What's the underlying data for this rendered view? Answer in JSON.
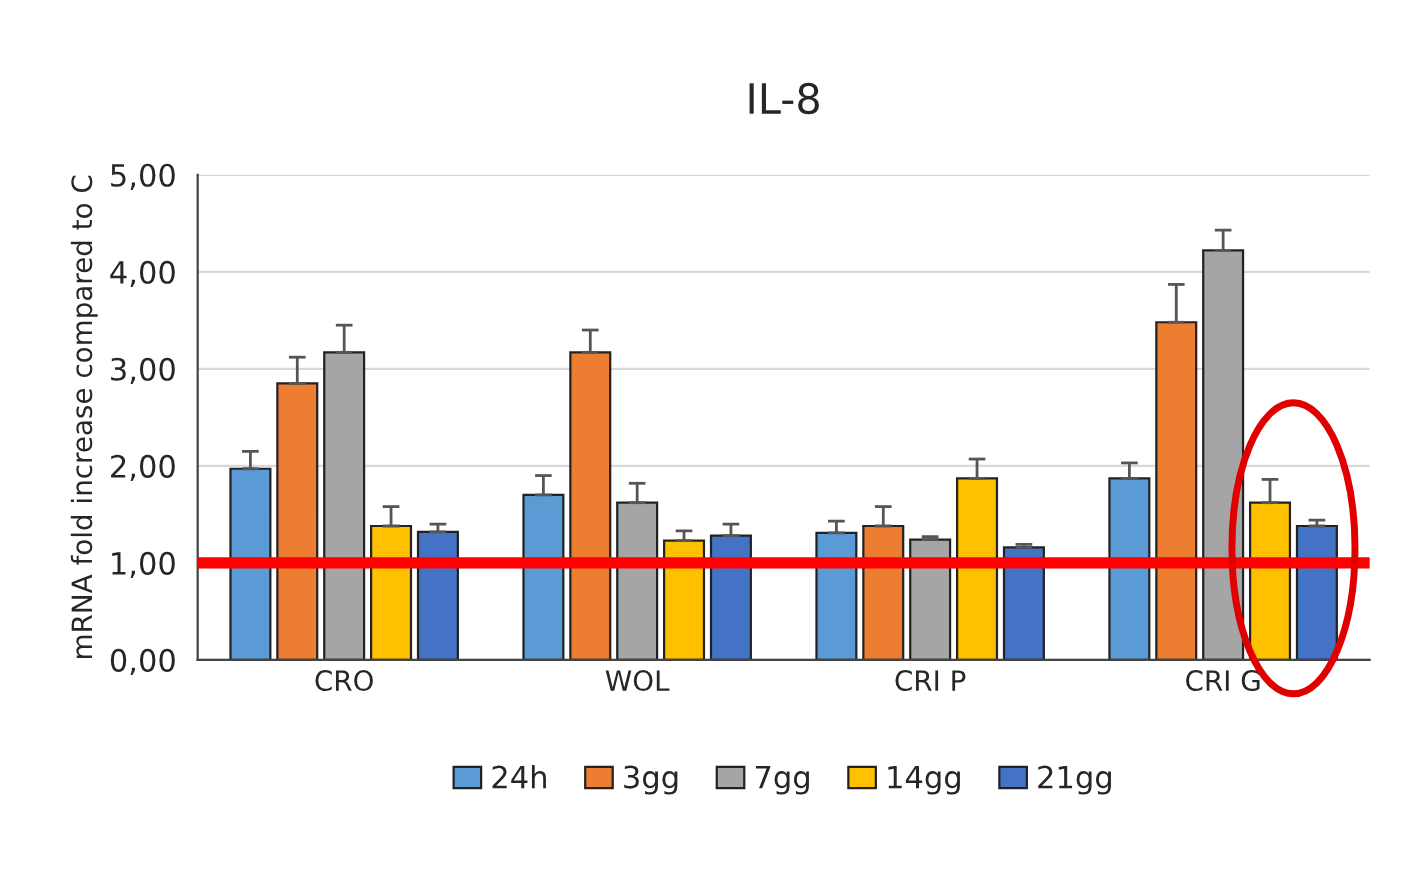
{
  "chart_data": {
    "type": "bar",
    "title": "IL-8",
    "ylabel": "mRNA fold increase compared to C",
    "categories": [
      "CRO",
      "WOL",
      "CRI P",
      "CRI G"
    ],
    "series": [
      {
        "name": "24h",
        "color": "#5b9bd5",
        "values": [
          1.97,
          1.7,
          1.31,
          1.87
        ],
        "errors": [
          [
            1.97,
            2.15
          ],
          [
            1.7,
            1.9
          ],
          [
            1.31,
            1.43
          ],
          [
            1.87,
            2.03
          ]
        ]
      },
      {
        "name": "3gg",
        "color": "#ed7d31",
        "values": [
          2.85,
          3.17,
          1.38,
          3.48
        ],
        "errors": [
          [
            2.85,
            3.12
          ],
          [
            3.17,
            3.4
          ],
          [
            1.38,
            1.58
          ],
          [
            3.48,
            3.87
          ]
        ]
      },
      {
        "name": "7gg",
        "color": "#a5a5a5",
        "values": [
          3.17,
          1.62,
          1.24,
          4.22
        ],
        "errors": [
          [
            3.17,
            3.45
          ],
          [
            1.62,
            1.82
          ],
          [
            1.24,
            1.27
          ],
          [
            4.22,
            4.43
          ]
        ]
      },
      {
        "name": "14gg",
        "color": "#ffc000",
        "values": [
          1.38,
          1.23,
          1.87,
          1.62
        ],
        "errors": [
          [
            1.38,
            1.58
          ],
          [
            1.23,
            1.33
          ],
          [
            1.87,
            2.07
          ],
          [
            1.62,
            1.86
          ]
        ]
      },
      {
        "name": "21gg",
        "color": "#4472c4",
        "values": [
          1.32,
          1.28,
          1.16,
          1.38
        ],
        "errors": [
          [
            1.32,
            1.4
          ],
          [
            1.28,
            1.4
          ],
          [
            1.16,
            1.19
          ],
          [
            1.38,
            1.44
          ]
        ]
      }
    ],
    "ylim": [
      0,
      5
    ],
    "yticks": [
      {
        "value": 0,
        "label": "0,00"
      },
      {
        "value": 1,
        "label": "1,00"
      },
      {
        "value": 2,
        "label": "2,00"
      },
      {
        "value": 3,
        "label": "3,00"
      },
      {
        "value": 4,
        "label": "4,00"
      },
      {
        "value": 5,
        "label": "5,00"
      }
    ],
    "ref_lines": [
      {
        "axis": "y",
        "value": 1,
        "color": "#ff0000",
        "line_style": "solid"
      }
    ],
    "grid": "y",
    "legend": "bottom"
  }
}
